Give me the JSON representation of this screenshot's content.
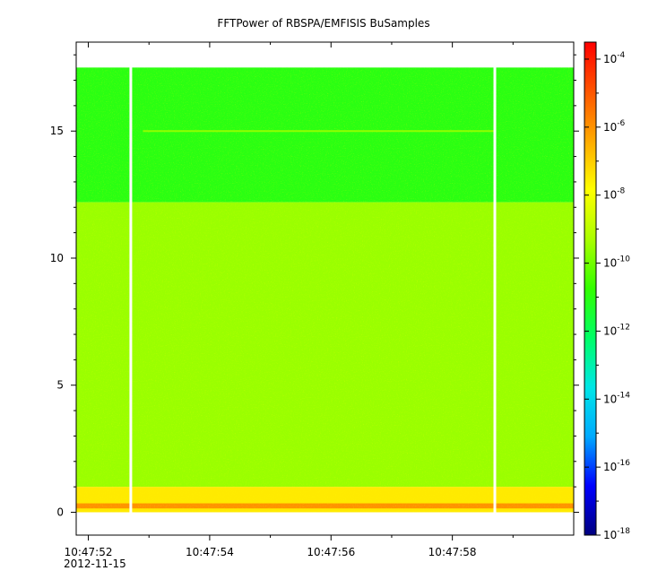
{
  "chart_data": {
    "type": "heatmap",
    "title": "FFTPower of RBSPA/EMFISIS  BuSamples",
    "xlabel": "",
    "ylabel": "",
    "date_label": "2012-11-15",
    "x_ticks": [
      "10:47:52",
      "10:47:54",
      "10:47:56",
      "10:47:58"
    ],
    "x_range_seconds": [
      "10:47:51.8",
      "10:48:00.0"
    ],
    "y_ticks": [
      0,
      5,
      10,
      15
    ],
    "ylim": [
      -0.9,
      18.5
    ],
    "frequency_top": 17.5,
    "colorbar": {
      "scale": "log",
      "range": [
        "1e-18",
        "1e-3.5"
      ],
      "tick_base": "10",
      "tick_exponents": [
        "-4",
        "-6",
        "-8",
        "-10",
        "-12",
        "-14",
        "-16",
        "-18"
      ],
      "colormap": [
        "#00007f",
        "#0000ff",
        "#00aaff",
        "#00e6e6",
        "#00ff66",
        "#33ff00",
        "#aaff00",
        "#ffff00",
        "#ffaa00",
        "#ff5500",
        "#ff0000"
      ]
    },
    "data_gaps": [
      "10:47:52.7",
      "10:47:58.7"
    ],
    "bands": [
      {
        "from": 12.2,
        "to": 17.5,
        "level": "1e-11"
      },
      {
        "from": 1.0,
        "to": 12.2,
        "level": "1e-9.5"
      },
      {
        "from": 0.0,
        "to": 1.0,
        "level": "1e-7.5"
      },
      {
        "from": 0.15,
        "to": 0.35,
        "level": "1e-6"
      }
    ],
    "line_feature": {
      "frequency": 15.0,
      "from": "10:47:52.9",
      "to": "10:47:58.7"
    },
    "grid": false
  }
}
